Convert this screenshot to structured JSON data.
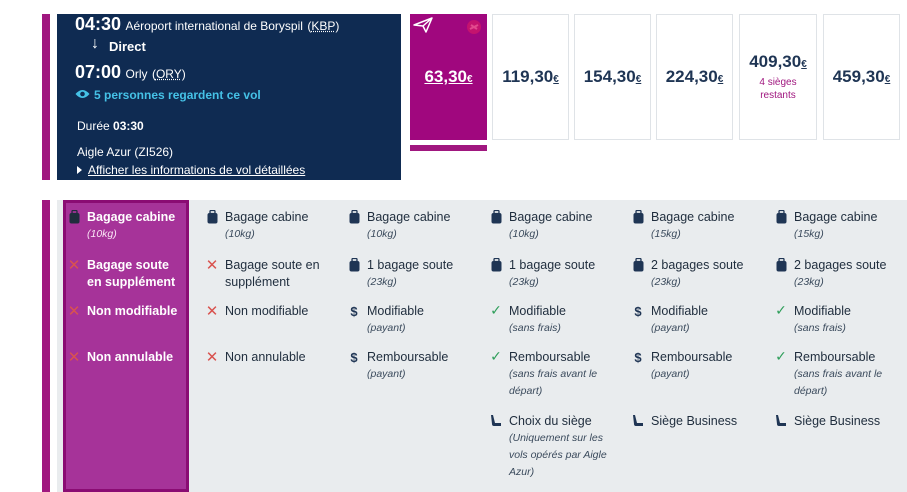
{
  "flight": {
    "departure_time": "04:30",
    "departure_airport": "Aéroport international de Boryspil",
    "departure_code": "KBP",
    "stop_label": "Direct",
    "arrival_time": "07:00",
    "arrival_airport": "Orly",
    "arrival_code": "ORY",
    "watchers": "5 personnes regardent ce vol",
    "duration_label": "Durée",
    "duration_value": "03:30",
    "airline": "Aigle Azur (ZI526)",
    "details_link": "Afficher les informations de vol détaillées"
  },
  "fares": [
    {
      "price": "63,30",
      "currency": "€",
      "note": "",
      "selected": true
    },
    {
      "price": "119,30",
      "currency": "€",
      "note": ""
    },
    {
      "price": "154,30",
      "currency": "€",
      "note": ""
    },
    {
      "price": "224,30",
      "currency": "€",
      "note": ""
    },
    {
      "price": "409,30",
      "currency": "€",
      "note": "4 sièges restants"
    },
    {
      "price": "459,30",
      "currency": "€",
      "note": ""
    }
  ],
  "features": {
    "col0": [
      {
        "icon": "bag-icon",
        "label": "Bagage cabine",
        "sub": "(10kg)"
      },
      {
        "icon": "x-icon",
        "label": "Bagage soute en supplément",
        "sub": ""
      },
      {
        "icon": "x-icon",
        "label": "Non modifiable",
        "sub": ""
      },
      {
        "icon": "x-icon",
        "label": "Non annulable",
        "sub": ""
      }
    ],
    "col1": [
      {
        "icon": "bag-icon",
        "label": "Bagage cabine",
        "sub": "(10kg)"
      },
      {
        "icon": "x-icon",
        "label": "Bagage soute en supplément",
        "sub": ""
      },
      {
        "icon": "x-icon",
        "label": "Non modifiable",
        "sub": ""
      },
      {
        "icon": "x-icon",
        "label": "Non annulable",
        "sub": ""
      }
    ],
    "col2": [
      {
        "icon": "bag-icon",
        "label": "Bagage cabine",
        "sub": "(10kg)"
      },
      {
        "icon": "bag-icon",
        "label": "1 bagage soute",
        "sub": "(23kg)"
      },
      {
        "icon": "dollar-icon",
        "label": "Modifiable",
        "sub": "(payant)"
      },
      {
        "icon": "dollar-icon",
        "label": "Remboursable",
        "sub": "(payant)"
      }
    ],
    "col3": [
      {
        "icon": "bag-icon",
        "label": "Bagage cabine",
        "sub": "(10kg)"
      },
      {
        "icon": "bag-icon",
        "label": "1 bagage soute",
        "sub": "(23kg)"
      },
      {
        "icon": "check-icon",
        "label": "Modifiable",
        "sub": "(sans frais)"
      },
      {
        "icon": "check-icon",
        "label": "Remboursable",
        "sub": "(sans frais avant le départ)"
      },
      {
        "icon": "seat-icon",
        "label": "Choix du siège",
        "sub": "(Uniquement sur les vols opérés par Aigle Azur)"
      }
    ],
    "col4": [
      {
        "icon": "bag-icon",
        "label": "Bagage cabine",
        "sub": "(15kg)"
      },
      {
        "icon": "bag-icon",
        "label": "2 bagages soute",
        "sub": "(23kg)"
      },
      {
        "icon": "dollar-icon",
        "label": "Modifiable",
        "sub": "(payant)"
      },
      {
        "icon": "dollar-icon",
        "label": "Remboursable",
        "sub": "(payant)"
      },
      {
        "icon": "seat-icon",
        "label": "Siège Business",
        "sub": ""
      }
    ],
    "col5": [
      {
        "icon": "bag-icon",
        "label": "Bagage cabine",
        "sub": "(15kg)"
      },
      {
        "icon": "bag-icon",
        "label": "2 bagages soute",
        "sub": "(23kg)"
      },
      {
        "icon": "check-icon",
        "label": "Modifiable",
        "sub": "(sans frais)"
      },
      {
        "icon": "check-icon",
        "label": "Remboursable",
        "sub": "(sans frais avant le départ)"
      },
      {
        "icon": "seat-icon",
        "label": "Siège Business",
        "sub": ""
      }
    ]
  },
  "colors": {
    "navy": "#0f2b52",
    "magenta": "#a0077e",
    "watch": "#45c1e6"
  }
}
